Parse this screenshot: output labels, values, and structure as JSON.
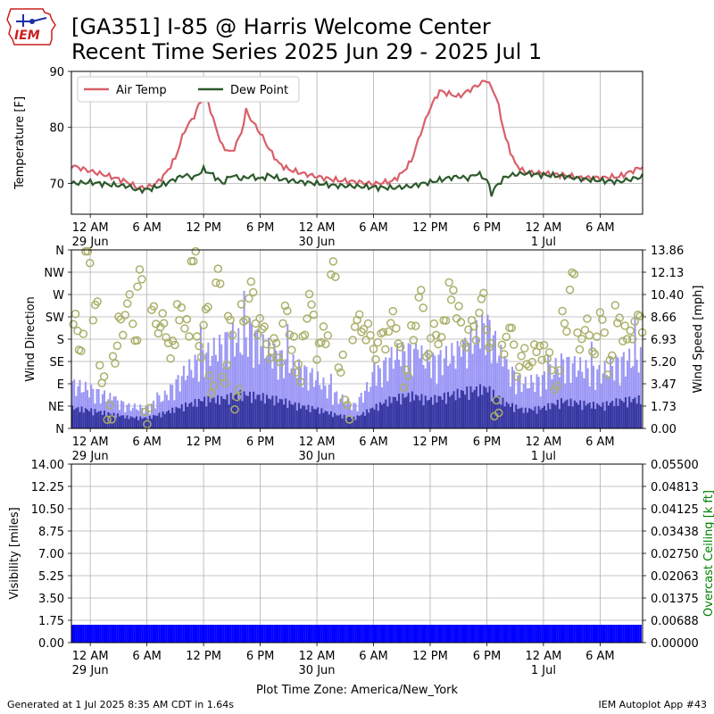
{
  "header": {
    "logo_text": "IEM",
    "title_line1": "[GA351] I-85 @ Harris Welcome Center",
    "title_line2": "Recent Time Series 2025 Jun 29 - 2025 Jul 1"
  },
  "footer": {
    "generated": "Generated at 1 Jul 2025 8:35 AM CDT in 1.64s",
    "app": "IEM Autoplot App #43"
  },
  "colors": {
    "air_temp": "#d9606a",
    "dew_point": "#2d5a2d",
    "gust_bar": "#9a96f5",
    "speed_bar": "#3535a0",
    "direction_marker": "#aab06a",
    "visibility_bar": "#0000ff",
    "ceiling_axis": "#008000",
    "grid": "#b0b0b0"
  },
  "time_axis": {
    "ticks": [
      {
        "hour": 0,
        "label": "12 AM",
        "sub": "29 Jun"
      },
      {
        "hour": 6,
        "label": "6 AM",
        "sub": ""
      },
      {
        "hour": 12,
        "label": "12 PM",
        "sub": ""
      },
      {
        "hour": 18,
        "label": "6 PM",
        "sub": ""
      },
      {
        "hour": 24,
        "label": "12 AM",
        "sub": "30 Jun"
      },
      {
        "hour": 30,
        "label": "6 AM",
        "sub": ""
      },
      {
        "hour": 36,
        "label": "12 PM",
        "sub": ""
      },
      {
        "hour": 42,
        "label": "6 PM",
        "sub": ""
      },
      {
        "hour": 48,
        "label": "12 AM",
        "sub": "1 Jul"
      },
      {
        "hour": 54,
        "label": "6 AM",
        "sub": ""
      }
    ],
    "xlim_hours": [
      -2,
      58.5
    ],
    "timezone_label": "Plot Time Zone: America/New_York"
  },
  "chart_data": [
    {
      "type": "line",
      "ylabel": "Temperature [F]",
      "ylim": [
        64.5,
        90
      ],
      "yticks": [
        70,
        80,
        90
      ],
      "grid": true,
      "legend_position": "top-left",
      "series": [
        {
          "name": "Air Temp",
          "x_hours": [
            -2,
            0,
            2,
            4,
            5,
            6,
            7,
            8,
            9,
            10,
            11,
            11.5,
            12,
            12.5,
            13,
            14,
            15,
            16,
            16.5,
            17,
            18,
            19,
            20,
            21,
            22,
            24,
            26,
            28,
            30,
            32,
            33,
            34,
            35,
            36,
            37,
            38,
            39,
            40,
            41,
            42,
            43,
            44,
            45,
            46,
            48,
            50,
            52,
            54,
            56,
            58.5
          ],
          "values": [
            73.2,
            72.2,
            71.3,
            70.2,
            69.2,
            69.3,
            70.0,
            71.8,
            74.5,
            79.5,
            82.0,
            84.0,
            85.5,
            84.5,
            81.5,
            76.5,
            75.5,
            79.0,
            83.0,
            81.5,
            79.0,
            76.0,
            73.5,
            72.5,
            72.0,
            71.2,
            70.6,
            70.3,
            69.9,
            70.4,
            71.8,
            74.0,
            79.0,
            83.5,
            86.5,
            86.0,
            85.5,
            86.5,
            87.5,
            88.5,
            85.5,
            78.0,
            73.5,
            72.0,
            71.8,
            71.5,
            71.0,
            71.0,
            71.2,
            73.0
          ]
        },
        {
          "name": "Dew Point",
          "x_hours": [
            -2,
            0,
            2,
            4,
            5,
            6,
            7,
            8,
            9,
            10,
            11,
            12,
            13,
            14,
            15,
            16,
            17,
            18,
            19,
            20,
            22,
            24,
            26,
            28,
            30,
            32,
            34,
            35,
            36,
            37,
            38,
            39,
            40,
            41,
            42,
            42.5,
            43,
            44,
            45,
            46,
            48,
            50,
            52,
            54,
            56,
            58.5
          ],
          "values": [
            70.0,
            70.2,
            69.8,
            69.5,
            68.8,
            68.9,
            69.3,
            70.0,
            70.8,
            71.5,
            71.0,
            72.5,
            71.5,
            70.0,
            71.5,
            70.8,
            71.3,
            70.8,
            71.5,
            70.8,
            70.3,
            70.0,
            69.6,
            69.5,
            69.3,
            69.2,
            69.5,
            69.9,
            70.2,
            70.6,
            71.0,
            71.2,
            70.9,
            71.8,
            70.6,
            68.2,
            69.5,
            71.2,
            71.6,
            71.8,
            71.5,
            71.3,
            70.8,
            70.5,
            70.3,
            71.2
          ]
        }
      ]
    },
    {
      "type": "bar",
      "ylabel_left": "Wind Direction",
      "ylabel_right": "Wind Speed [mph]",
      "direction_ticks": [
        "N",
        "NE",
        "E",
        "SE",
        "S",
        "SW",
        "W",
        "NW",
        "N"
      ],
      "ylim_direction": [
        0,
        360
      ],
      "speed_ticks": [
        "0.00",
        "1.73",
        "3.47",
        "5.20",
        "6.93",
        "8.66",
        "10.40",
        "12.13",
        "13.86"
      ],
      "ylim_speed": [
        0,
        13.86
      ],
      "grid": true,
      "series": [
        {
          "name": "Wind Gust",
          "x_hours": [
            -2,
            0,
            2,
            4,
            6,
            8,
            10,
            12,
            14,
            15,
            16,
            17,
            18,
            20,
            22,
            24,
            26,
            28,
            30,
            32,
            34,
            36,
            38,
            40,
            42,
            44,
            46,
            48,
            50,
            52,
            54,
            56,
            58.5
          ],
          "values": [
            4.0,
            3.5,
            2.8,
            2.0,
            1.8,
            3.0,
            5.0,
            6.5,
            7.5,
            8.5,
            7.5,
            9.0,
            7.5,
            6.5,
            5.5,
            4.5,
            3.0,
            2.0,
            4.5,
            6.5,
            7.0,
            6.0,
            6.5,
            7.5,
            9.5,
            5.5,
            4.0,
            4.5,
            6.0,
            5.5,
            5.0,
            6.0,
            6.5
          ]
        },
        {
          "name": "Wind Speed",
          "x_hours": [
            -2,
            0,
            2,
            4,
            6,
            8,
            10,
            12,
            14,
            16,
            18,
            20,
            22,
            24,
            26,
            28,
            30,
            32,
            34,
            36,
            38,
            40,
            42,
            44,
            46,
            48,
            50,
            52,
            54,
            56,
            58.5
          ],
          "values": [
            1.8,
            1.6,
            1.3,
            1.0,
            0.9,
            1.4,
            2.0,
            2.5,
            2.6,
            3.0,
            2.8,
            2.5,
            2.0,
            1.7,
            1.2,
            0.9,
            1.8,
            2.6,
            2.9,
            2.5,
            2.9,
            3.3,
            3.5,
            2.2,
            1.6,
            1.8,
            2.4,
            2.2,
            2.0,
            2.4,
            2.6
          ]
        },
        {
          "name": "Wind Direction",
          "x_hours": [
            -1.8,
            -1.2,
            -0.5,
            0.3,
            1.0,
            1.8,
            2.4,
            3.0,
            3.7,
            4.5,
            5.0,
            5.8,
            6.5,
            7.2,
            7.8,
            8.5,
            9.2,
            10.0,
            10.7,
            11.3,
            12.0,
            12.6,
            13.3,
            14.0,
            14.6,
            15.3,
            16.0,
            16.8,
            17.5,
            18.2,
            19.0,
            19.7,
            20.4,
            21.1,
            21.8,
            22.5,
            23.2,
            24.0,
            24.7,
            25.5,
            26.3,
            27.0,
            27.8,
            28.5,
            29.2,
            30.0,
            30.8,
            31.6,
            32.4,
            33.2,
            34.0,
            34.8,
            35.6,
            36.4,
            37.2,
            38.0,
            38.8,
            39.6,
            40.4,
            41.2,
            42.0,
            42.8,
            43.6,
            44.4,
            45.2,
            46.0,
            46.8,
            47.6,
            48.4,
            49.2,
            50.0,
            50.8,
            51.6,
            52.4,
            53.2,
            54.0,
            54.8,
            55.6,
            56.4,
            57.2,
            58.0
          ],
          "values": [
            210,
            170,
            355,
            240,
            110,
            25,
            150,
            210,
            250,
            190,
            300,
            30,
            230,
            210,
            190,
            160,
            240,
            200,
            350,
            165,
            230,
            90,
            300,
            110,
            210,
            60,
            230,
            275,
            210,
            190,
            160,
            150,
            230,
            180,
            110,
            200,
            250,
            160,
            190,
            315,
            130,
            40,
            200,
            210,
            190,
            160,
            180,
            215,
            180,
            100,
            200,
            260,
            160,
            190,
            205,
            280,
            225,
            180,
            200,
            255,
            180,
            35,
            170,
            190,
            125,
            140,
            150,
            160,
            135,
            95,
            215,
            300,
            180,
            200,
            165,
            215,
            130,
            230,
            185,
            200,
            215
          ]
        }
      ]
    },
    {
      "type": "bar",
      "ylabel_left": "Visibility [miles]",
      "ylabel_right": "Overcast Ceiling [k ft]",
      "yticks_left": [
        "0.00",
        "1.75",
        "3.50",
        "5.25",
        "7.00",
        "8.75",
        "10.50",
        "12.25",
        "14.00"
      ],
      "ylim_left": [
        0,
        14
      ],
      "yticks_right": [
        "0.00000",
        "0.00688",
        "0.01375",
        "0.02063",
        "0.02750",
        "0.03438",
        "0.04125",
        "0.04813",
        "0.05500"
      ],
      "ylim_right": [
        0,
        0.055
      ],
      "grid": true,
      "series": [
        {
          "name": "Visibility",
          "x_range_hours": [
            -2,
            58.5
          ],
          "values": [
            1.4
          ]
        }
      ]
    }
  ]
}
